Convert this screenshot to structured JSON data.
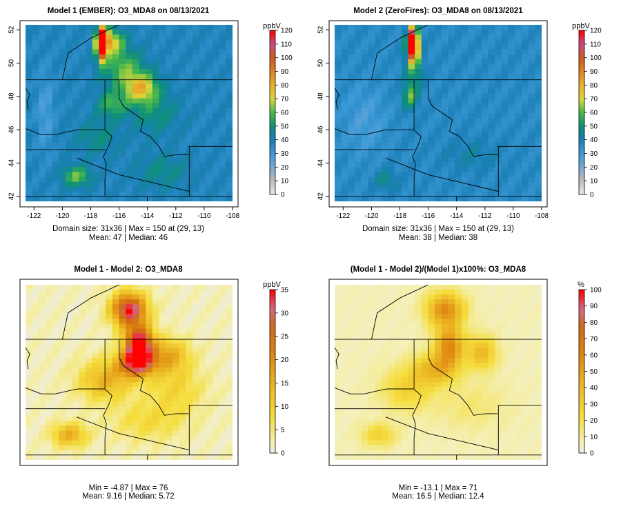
{
  "chart_data": [
    {
      "type": "heatmap",
      "title": "Model 1 (EMBER): O3_MDA8 on 08/13/2021",
      "units": "ppbV",
      "scale": "ppb",
      "x_ticks": [
        -122,
        -120,
        -118,
        -116,
        -114,
        -112,
        -110,
        -108
      ],
      "y_ticks": [
        42,
        44,
        46,
        48,
        50,
        52
      ],
      "x_range": [
        -122,
        -108
      ],
      "y_range": [
        42,
        52
      ],
      "colorbar_ticks": [
        0,
        10,
        20,
        30,
        40,
        50,
        60,
        70,
        80,
        90,
        100,
        110,
        120
      ],
      "colorbar_range": [
        0,
        120
      ],
      "grid_size": [
        31,
        36
      ],
      "background": 38,
      "features": [
        {
          "lon": -117.2,
          "lat": 51.2,
          "value": 160,
          "sx": 0.35,
          "sy": 0.9
        },
        {
          "lon": -116.5,
          "lat": 51.3,
          "value": 72,
          "sx": 0.8,
          "sy": 0.7
        },
        {
          "lon": -114.5,
          "lat": 48.5,
          "value": 78,
          "sx": 1.2,
          "sy": 0.9
        },
        {
          "lon": -115.8,
          "lat": 49.8,
          "value": 60,
          "sx": 1.4,
          "sy": 1.1
        },
        {
          "lon": -116.5,
          "lat": 47.5,
          "value": 58,
          "sx": 1.0,
          "sy": 0.8
        },
        {
          "lon": -113.5,
          "lat": 47.0,
          "value": 50,
          "sx": 1.6,
          "sy": 1.2
        },
        {
          "lon": -119.0,
          "lat": 43.2,
          "value": 62,
          "sx": 1.0,
          "sy": 0.6
        },
        {
          "lon": -117.5,
          "lat": 45.5,
          "value": 48,
          "sx": 1.5,
          "sy": 1.0
        },
        {
          "lon": -121.2,
          "lat": 47.0,
          "value": 28,
          "sx": 0.6,
          "sy": 2.5
        },
        {
          "lon": -113.0,
          "lat": 43.5,
          "value": 48,
          "sx": 1.8,
          "sy": 1.0
        }
      ],
      "stats_line1": "Domain size: 31x36 | Max = 150 at (29, 13)",
      "stats_line2": "Mean: 47 |  Median: 46"
    },
    {
      "type": "heatmap",
      "title": "Model 2 (ZeroFires): O3_MDA8 on 08/13/2021",
      "units": "ppbV",
      "scale": "ppb",
      "x_ticks": [
        -122,
        -120,
        -118,
        -116,
        -114,
        -112,
        -110,
        -108
      ],
      "y_ticks": [
        42,
        44,
        46,
        48,
        50,
        52
      ],
      "x_range": [
        -122,
        -108
      ],
      "y_range": [
        42,
        52
      ],
      "colorbar_ticks": [
        0,
        10,
        20,
        30,
        40,
        50,
        60,
        70,
        80,
        90,
        100,
        110,
        120
      ],
      "colorbar_range": [
        0,
        120
      ],
      "grid_size": [
        31,
        36
      ],
      "background": 36,
      "features": [
        {
          "lon": -117.1,
          "lat": 51.2,
          "value": 158,
          "sx": 0.35,
          "sy": 0.9
        },
        {
          "lon": -117.0,
          "lat": 49.8,
          "value": 55,
          "sx": 0.6,
          "sy": 1.4
        },
        {
          "lon": -117.3,
          "lat": 48.0,
          "value": 60,
          "sx": 0.5,
          "sy": 0.7
        },
        {
          "lon": -120.5,
          "lat": 46.5,
          "value": 28,
          "sx": 1.5,
          "sy": 2.0
        },
        {
          "lon": -119.0,
          "lat": 43.0,
          "value": 48,
          "sx": 0.8,
          "sy": 0.6
        },
        {
          "lon": -113.0,
          "lat": 44.5,
          "value": 42,
          "sx": 2.0,
          "sy": 1.0
        }
      ],
      "stats_line1": "Domain size: 31x36 | Max = 150 at (29, 13)",
      "stats_line2": "Mean: 38 |  Median: 38"
    },
    {
      "type": "heatmap",
      "title": "Model 1 - Model 2: O3_MDA8",
      "units": "ppbV",
      "scale": "diff",
      "x_ticks": [],
      "y_ticks": [],
      "x_range": [
        -122,
        -108
      ],
      "y_range": [
        42,
        52
      ],
      "colorbar_ticks": [
        0,
        5,
        10,
        15,
        20,
        25,
        30,
        35
      ],
      "colorbar_range": [
        0,
        35
      ],
      "grid_size": [
        31,
        36
      ],
      "background": 2,
      "features": [
        {
          "lon": -115.3,
          "lat": 50.8,
          "value": 34,
          "sx": 1.2,
          "sy": 1.0
        },
        {
          "lon": -114.6,
          "lat": 48.7,
          "value": 38,
          "sx": 1.0,
          "sy": 1.1
        },
        {
          "lon": -114.8,
          "lat": 47.5,
          "value": 28,
          "sx": 1.3,
          "sy": 0.8
        },
        {
          "lon": -112.5,
          "lat": 48.0,
          "value": 16,
          "sx": 1.4,
          "sy": 1.0
        },
        {
          "lon": -117.0,
          "lat": 46.5,
          "value": 15,
          "sx": 1.8,
          "sy": 1.2
        },
        {
          "lon": -119.5,
          "lat": 43.2,
          "value": 16,
          "sx": 1.2,
          "sy": 0.7
        },
        {
          "lon": -112.0,
          "lat": 46.0,
          "value": 9,
          "sx": 2.0,
          "sy": 1.5
        },
        {
          "lon": -114.0,
          "lat": 44.0,
          "value": 8,
          "sx": 2.5,
          "sy": 1.2
        }
      ],
      "stats_line1": "Min = -4.87 | Max = 76",
      "stats_line2": "Mean: 9.16 |  Median: 5.72"
    },
    {
      "type": "heatmap",
      "title": "(Model 1 - Model 2)/(Model 1)x100%: O3_MDA8",
      "units": "%",
      "scale": "diff",
      "x_ticks": [],
      "y_ticks": [],
      "x_range": [
        -122,
        -108
      ],
      "y_range": [
        42,
        52
      ],
      "colorbar_ticks": [
        0,
        10,
        20,
        30,
        40,
        50,
        60,
        70,
        80,
        90,
        100
      ],
      "colorbar_range": [
        0,
        100
      ],
      "grid_size": [
        31,
        36
      ],
      "background": 6,
      "features": [
        {
          "lon": -114.8,
          "lat": 50.8,
          "value": 58,
          "sx": 1.3,
          "sy": 1.0
        },
        {
          "lon": -114.5,
          "lat": 48.6,
          "value": 60,
          "sx": 1.0,
          "sy": 1.2
        },
        {
          "lon": -115.5,
          "lat": 47.2,
          "value": 42,
          "sx": 1.5,
          "sy": 0.9
        },
        {
          "lon": -112.2,
          "lat": 48.2,
          "value": 40,
          "sx": 1.0,
          "sy": 1.0
        },
        {
          "lon": -117.5,
          "lat": 46.0,
          "value": 28,
          "sx": 1.8,
          "sy": 1.3
        },
        {
          "lon": -119.5,
          "lat": 43.2,
          "value": 28,
          "sx": 1.2,
          "sy": 0.7
        },
        {
          "lon": -113.0,
          "lat": 45.0,
          "value": 15,
          "sx": 2.5,
          "sy": 1.5
        }
      ],
      "stats_line1": "Min = -13.1 | Max = 71",
      "stats_line2": "Mean: 16.5 |  Median: 12.4"
    }
  ],
  "colors": {
    "ocean_gray": "#e5e5e5",
    "border_line": "#000000"
  }
}
